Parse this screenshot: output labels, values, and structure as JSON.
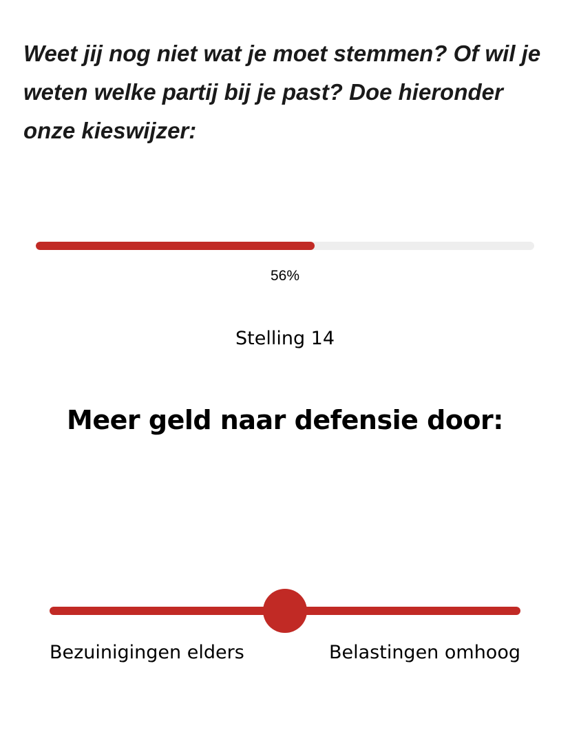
{
  "intro": {
    "text": "Weet jij nog niet wat je moet stemmen? Of wil je weten welke partij bij je past? Doe hieronder onze kieswijzer:"
  },
  "progress": {
    "fraction": 0.56,
    "label": "56%"
  },
  "statement": {
    "number_label": "Stelling 14",
    "title": "Meer geld naar defensie door:"
  },
  "slider": {
    "value": 0.5,
    "left_label": "Bezuinigingen elders",
    "right_label": "Belastingen omhoog"
  },
  "colors": {
    "accent": "#c12a25",
    "track_bg": "#eeeeee",
    "text": "#000000"
  }
}
